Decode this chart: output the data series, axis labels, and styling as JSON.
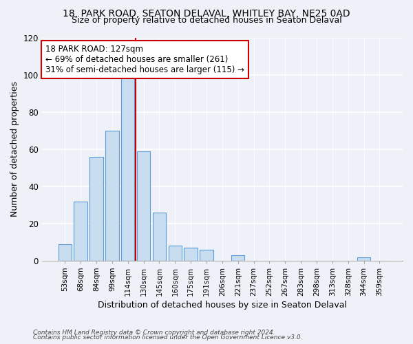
{
  "title1": "18, PARK ROAD, SEATON DELAVAL, WHITLEY BAY, NE25 0AD",
  "title2": "Size of property relative to detached houses in Seaton Delaval",
  "xlabel": "Distribution of detached houses by size in Seaton Delaval",
  "ylabel": "Number of detached properties",
  "bar_labels": [
    "53sqm",
    "68sqm",
    "84sqm",
    "99sqm",
    "114sqm",
    "130sqm",
    "145sqm",
    "160sqm",
    "175sqm",
    "191sqm",
    "206sqm",
    "221sqm",
    "237sqm",
    "252sqm",
    "267sqm",
    "283sqm",
    "298sqm",
    "313sqm",
    "328sqm",
    "344sqm",
    "359sqm"
  ],
  "bar_heights": [
    9,
    32,
    56,
    70,
    101,
    59,
    26,
    8,
    7,
    6,
    0,
    3,
    0,
    0,
    0,
    0,
    0,
    0,
    0,
    2,
    0
  ],
  "bar_color": "#c9ddf0",
  "bar_edge_color": "#5b9bd5",
  "highlight_line_color": "#cc0000",
  "annotation_text": "18 PARK ROAD: 127sqm\n← 69% of detached houses are smaller (261)\n31% of semi-detached houses are larger (115) →",
  "annotation_box_color": "#ffffff",
  "annotation_box_edge": "#cc0000",
  "ylim": [
    0,
    120
  ],
  "yticks": [
    0,
    20,
    40,
    60,
    80,
    100,
    120
  ],
  "footer1": "Contains HM Land Registry data © Crown copyright and database right 2024.",
  "footer2": "Contains public sector information licensed under the Open Government Licence v3.0.",
  "bg_color": "#eef2f8",
  "title_fontsize": 10,
  "subtitle_fontsize": 9
}
